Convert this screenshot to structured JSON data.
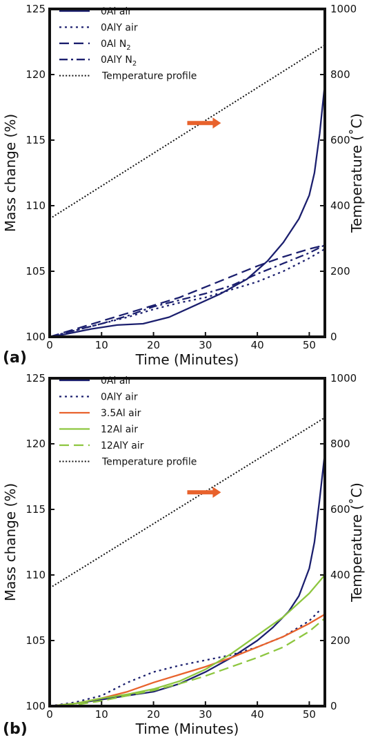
{
  "chart_data": [
    {
      "panel_label": "(a)",
      "type": "line",
      "xlabel": "Time (Minutes)",
      "ylabel": "Mass change (%)",
      "y2label": "Temperature (˚C)",
      "xlim": [
        0,
        53
      ],
      "ylim": [
        100,
        125
      ],
      "y2lim": [
        0,
        1000
      ],
      "xticks": [
        0,
        10,
        20,
        30,
        40,
        50
      ],
      "yticks": [
        100,
        105,
        110,
        115,
        120,
        125
      ],
      "y2ticks": [
        0,
        200,
        400,
        600,
        800,
        1000
      ],
      "grid": false,
      "legend_position": "top-left",
      "annotation": "orange arrow pointing right (temperature profile refers to right axis)",
      "colors": {
        "navy": "#1b1f6e",
        "black": "#111111",
        "arrow": "#e8622c"
      },
      "series": [
        {
          "name": "0Al air",
          "style": "solid",
          "color": "#1b1f6e",
          "x": [
            0,
            3,
            8,
            13,
            18,
            23,
            28,
            33,
            38,
            42,
            45,
            48,
            50,
            51,
            52,
            53
          ],
          "y": [
            100,
            100.2,
            100.6,
            100.9,
            101.0,
            101.5,
            102.4,
            103.3,
            104.4,
            105.8,
            107.2,
            109.0,
            110.8,
            112.5,
            115.5,
            119.3
          ]
        },
        {
          "name": "0AlY air",
          "style": "dotted",
          "color": "#1b1f6e",
          "x": [
            0,
            5,
            10,
            15,
            20,
            25,
            30,
            35,
            40,
            45,
            50,
            53
          ],
          "y": [
            100,
            100.5,
            101.0,
            101.5,
            102.1,
            102.6,
            103.0,
            103.6,
            104.2,
            105.0,
            106.0,
            106.7
          ]
        },
        {
          "name": "0Al N2",
          "style": "dashed",
          "color": "#1b1f6e",
          "x": [
            0,
            5,
            10,
            15,
            20,
            25,
            30,
            35,
            40,
            45,
            50,
            53
          ],
          "y": [
            100,
            100.6,
            101.2,
            101.8,
            102.4,
            103.0,
            103.8,
            104.6,
            105.4,
            106.1,
            106.7,
            107.0
          ]
        },
        {
          "name": "0AlY N2",
          "style": "dashdot",
          "color": "#1b1f6e",
          "x": [
            0,
            5,
            10,
            15,
            20,
            25,
            30,
            35,
            40,
            45,
            50,
            53
          ],
          "y": [
            100,
            100.5,
            101.0,
            101.6,
            102.3,
            102.8,
            103.3,
            103.9,
            104.8,
            105.6,
            106.4,
            107.0
          ]
        },
        {
          "name": "Temperature profile",
          "style": "fine-dotted",
          "color": "#111111",
          "axis": "right",
          "x": [
            0,
            53
          ],
          "y": [
            360,
            890
          ]
        }
      ],
      "legend": [
        {
          "label": "0Al air",
          "style": "solid",
          "color": "#1b1f6e"
        },
        {
          "label": "0AlY air",
          "style": "dotted",
          "color": "#1b1f6e"
        },
        {
          "label": "0Al N",
          "sub": "2",
          "style": "dashed",
          "color": "#1b1f6e"
        },
        {
          "label": "0AlY N",
          "sub": "2",
          "style": "dashdot",
          "color": "#1b1f6e"
        },
        {
          "label": "Temperature profile",
          "style": "fine-dotted",
          "color": "#111111"
        }
      ]
    },
    {
      "panel_label": "(b)",
      "type": "line",
      "xlabel": "Time (Minutes)",
      "ylabel": "Mass change (%)",
      "y2label": "Temperature (˚C)",
      "xlim": [
        0,
        53
      ],
      "ylim": [
        100,
        125
      ],
      "y2lim": [
        0,
        1000
      ],
      "xticks": [
        0,
        10,
        20,
        30,
        40,
        50
      ],
      "yticks": [
        100,
        105,
        110,
        115,
        120,
        125
      ],
      "y2ticks": [
        0,
        200,
        400,
        600,
        800,
        1000
      ],
      "grid": false,
      "legend_position": "top-left",
      "annotation": "orange arrow pointing right (temperature profile refers to right axis)",
      "colors": {
        "navy": "#1b1f6e",
        "orange": "#e8622c",
        "green": "#8dc63f",
        "black": "#111111",
        "arrow": "#e8622c"
      },
      "series": [
        {
          "name": "0Al air",
          "style": "solid",
          "color": "#1b1f6e",
          "x": [
            0,
            5,
            10,
            15,
            20,
            25,
            30,
            35,
            40,
            43,
            46,
            48,
            50,
            51,
            52,
            53
          ],
          "y": [
            100,
            100.2,
            100.5,
            100.8,
            101.1,
            101.7,
            102.6,
            103.7,
            105.0,
            106.0,
            107.2,
            108.4,
            110.5,
            112.5,
            115.8,
            119.3
          ]
        },
        {
          "name": "0AlY air",
          "style": "dotted",
          "color": "#1b1f6e",
          "x": [
            0,
            5,
            10,
            15,
            20,
            25,
            30,
            35,
            40,
            45,
            50,
            52
          ],
          "y": [
            100,
            100.3,
            100.8,
            101.8,
            102.6,
            103.1,
            103.5,
            103.9,
            104.5,
            105.3,
            106.5,
            107.3
          ]
        },
        {
          "name": "3.5Al air",
          "style": "solid",
          "color": "#e8622c",
          "x": [
            0,
            5,
            10,
            15,
            20,
            25,
            30,
            35,
            40,
            45,
            50,
            53
          ],
          "y": [
            100,
            100.2,
            100.6,
            101.1,
            101.8,
            102.4,
            103.0,
            103.7,
            104.5,
            105.3,
            106.3,
            107.0
          ]
        },
        {
          "name": "12Al air",
          "style": "solid",
          "color": "#8dc63f",
          "x": [
            0,
            5,
            10,
            15,
            20,
            25,
            30,
            35,
            40,
            45,
            50,
            53
          ],
          "y": [
            100,
            100.2,
            100.6,
            100.9,
            101.3,
            101.9,
            102.8,
            104.0,
            105.4,
            106.8,
            108.6,
            110.0
          ]
        },
        {
          "name": "12AlY air",
          "style": "dashed",
          "color": "#8dc63f",
          "x": [
            0,
            5,
            10,
            15,
            20,
            25,
            30,
            35,
            40,
            45,
            50,
            53
          ],
          "y": [
            100,
            100.1,
            100.4,
            100.8,
            101.2,
            101.7,
            102.3,
            103.0,
            103.7,
            104.5,
            105.7,
            106.7
          ]
        },
        {
          "name": "Temperature profile",
          "style": "fine-dotted",
          "color": "#111111",
          "axis": "right",
          "x": [
            0,
            53
          ],
          "y": [
            360,
            880
          ]
        }
      ],
      "legend": [
        {
          "label": "0Al air",
          "style": "solid",
          "color": "#1b1f6e"
        },
        {
          "label": "0AlY air",
          "style": "dotted",
          "color": "#1b1f6e"
        },
        {
          "label": "3.5Al air",
          "style": "solid",
          "color": "#e8622c"
        },
        {
          "label": "12Al air",
          "style": "solid",
          "color": "#8dc63f"
        },
        {
          "label": "12AlY air",
          "style": "dashed",
          "color": "#8dc63f"
        },
        {
          "label": "Temperature profile",
          "style": "fine-dotted",
          "color": "#111111"
        }
      ]
    }
  ]
}
